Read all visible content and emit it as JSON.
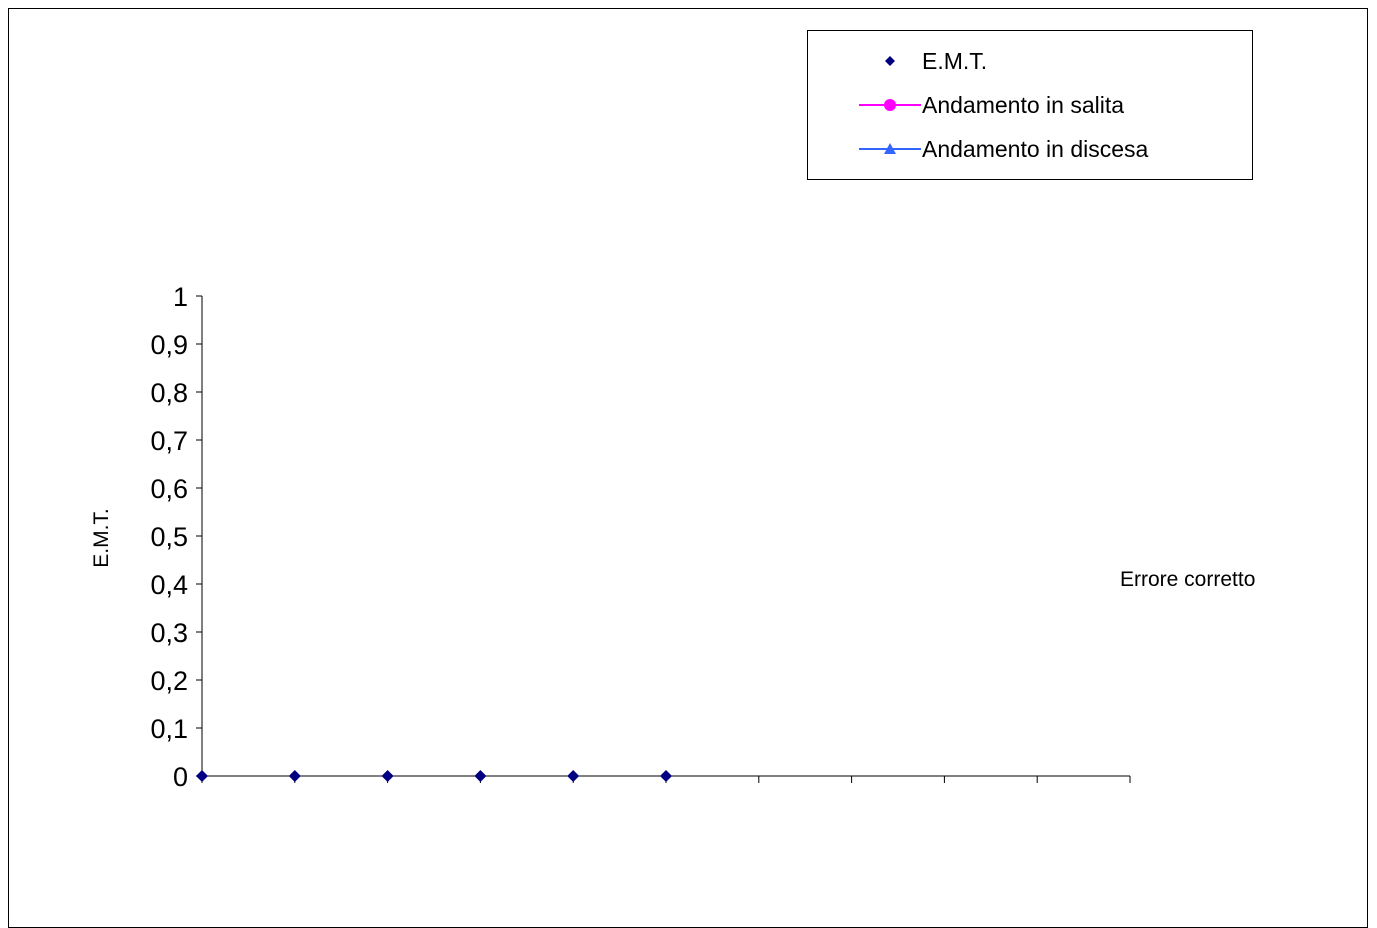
{
  "chart_data": {
    "type": "scatter",
    "title": "",
    "xlabel": "Errore corretto",
    "ylabel": "E.M.T.",
    "ylim": [
      0,
      1
    ],
    "yticks": [
      "0",
      "0,1",
      "0,2",
      "0,3",
      "0,4",
      "0,5",
      "0,6",
      "0,7",
      "0,8",
      "0,9",
      "1"
    ],
    "x_categories_count": 10,
    "grid": false,
    "legend_position": "top-right",
    "series": [
      {
        "name": "E.M.T.",
        "marker": "diamond",
        "line": false,
        "color": "#000080",
        "x": [
          1,
          2,
          3,
          4,
          5,
          6
        ],
        "values": [
          0,
          0,
          0,
          0,
          0,
          0
        ]
      },
      {
        "name": "Andamento in salita",
        "marker": "circle",
        "line": true,
        "color": "#FF00FF",
        "x": [],
        "values": []
      },
      {
        "name": "Andamento in discesa",
        "marker": "triangle",
        "line": true,
        "color": "#3366FF",
        "x": [],
        "values": []
      }
    ]
  }
}
